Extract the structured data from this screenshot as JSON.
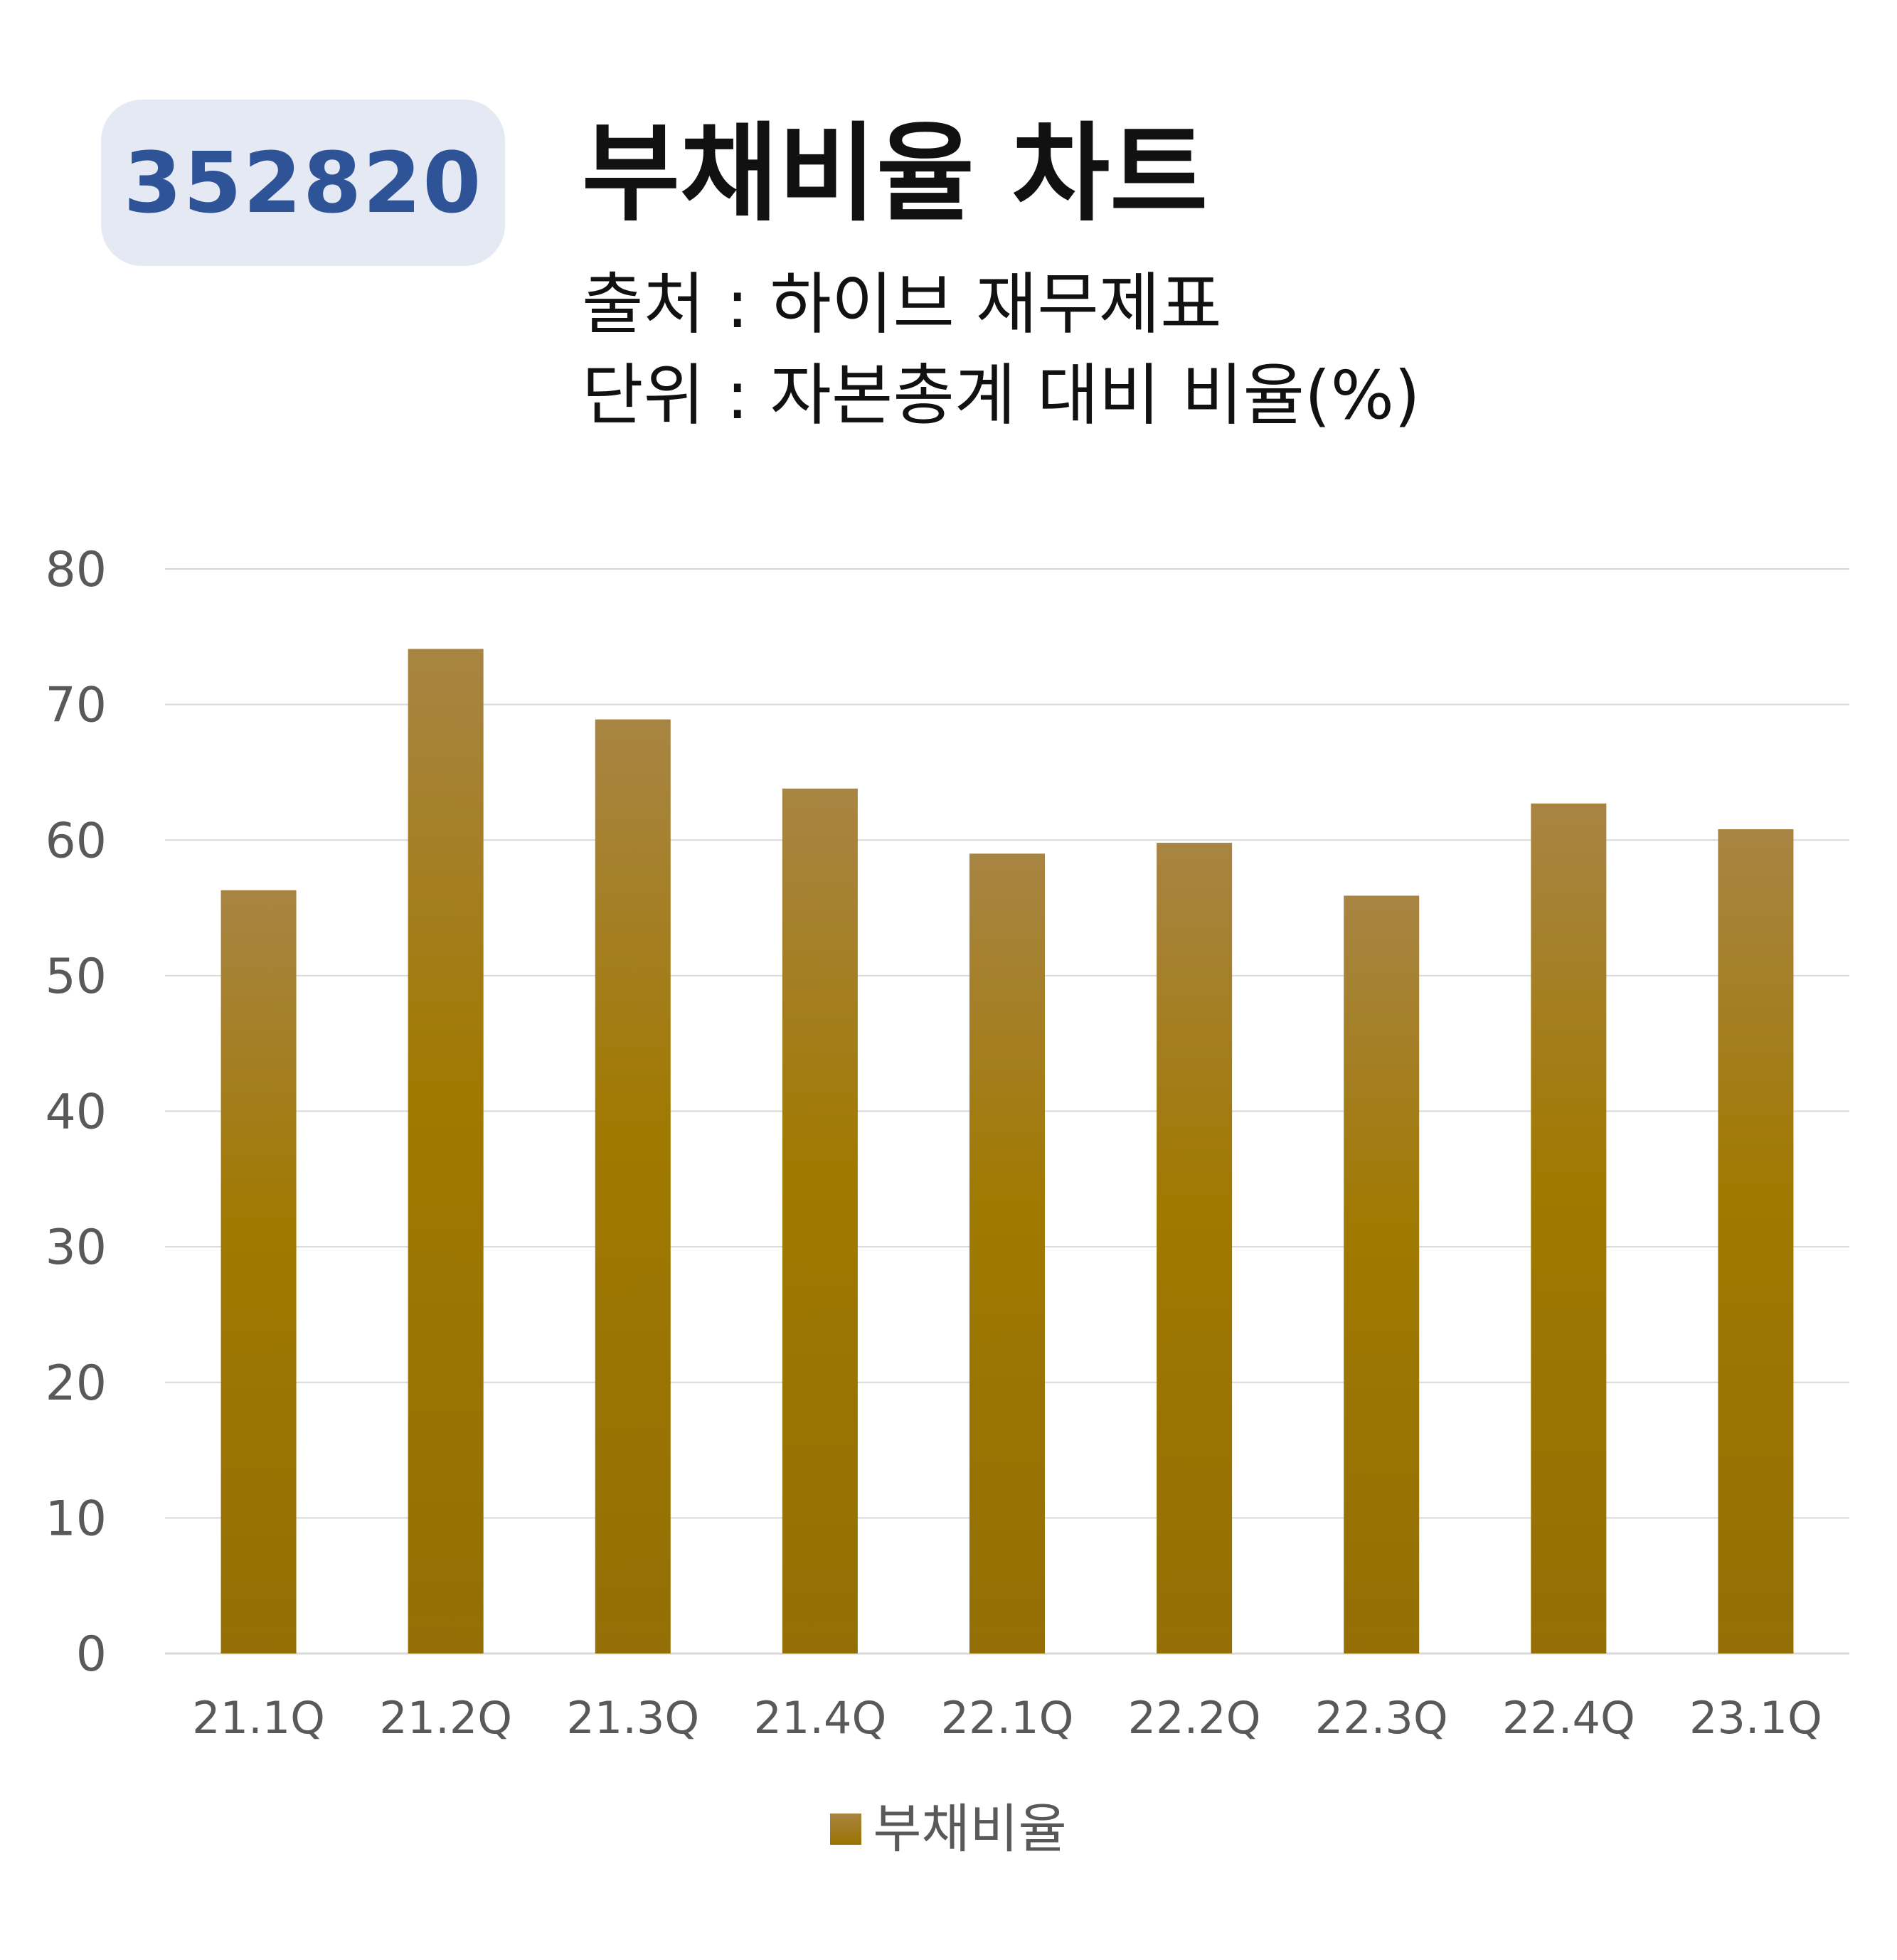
{
  "header": {
    "code": "352820",
    "title": "부채비율 차트",
    "source": "출처 : 하이브 재무제표",
    "unit": "단위 : 자본총계 대비 비율(%)"
  },
  "colors": {
    "badge_bg": "#e4e9f4",
    "badge_text": "#2e5396",
    "bar_top": "#a88443",
    "bar_mid": "#a07900",
    "bar_bottom": "#936f05",
    "grid": "#d9d9d9",
    "tick_text": "#595959"
  },
  "chart_data": {
    "type": "bar",
    "categories": [
      "21.1Q",
      "21.2Q",
      "21.3Q",
      "21.4Q",
      "22.1Q",
      "22.2Q",
      "22.3Q",
      "22.4Q",
      "23.1Q"
    ],
    "series": [
      {
        "name": "부채비율",
        "values": [
          56.3,
          74.1,
          68.9,
          63.8,
          59.0,
          59.8,
          55.9,
          62.7,
          60.8
        ]
      }
    ],
    "yticks": [
      "0",
      "10",
      "20",
      "30",
      "40",
      "50",
      "60",
      "70",
      "80"
    ],
    "ylim": [
      0,
      80
    ],
    "grid": true,
    "legend_position": "bottom"
  }
}
